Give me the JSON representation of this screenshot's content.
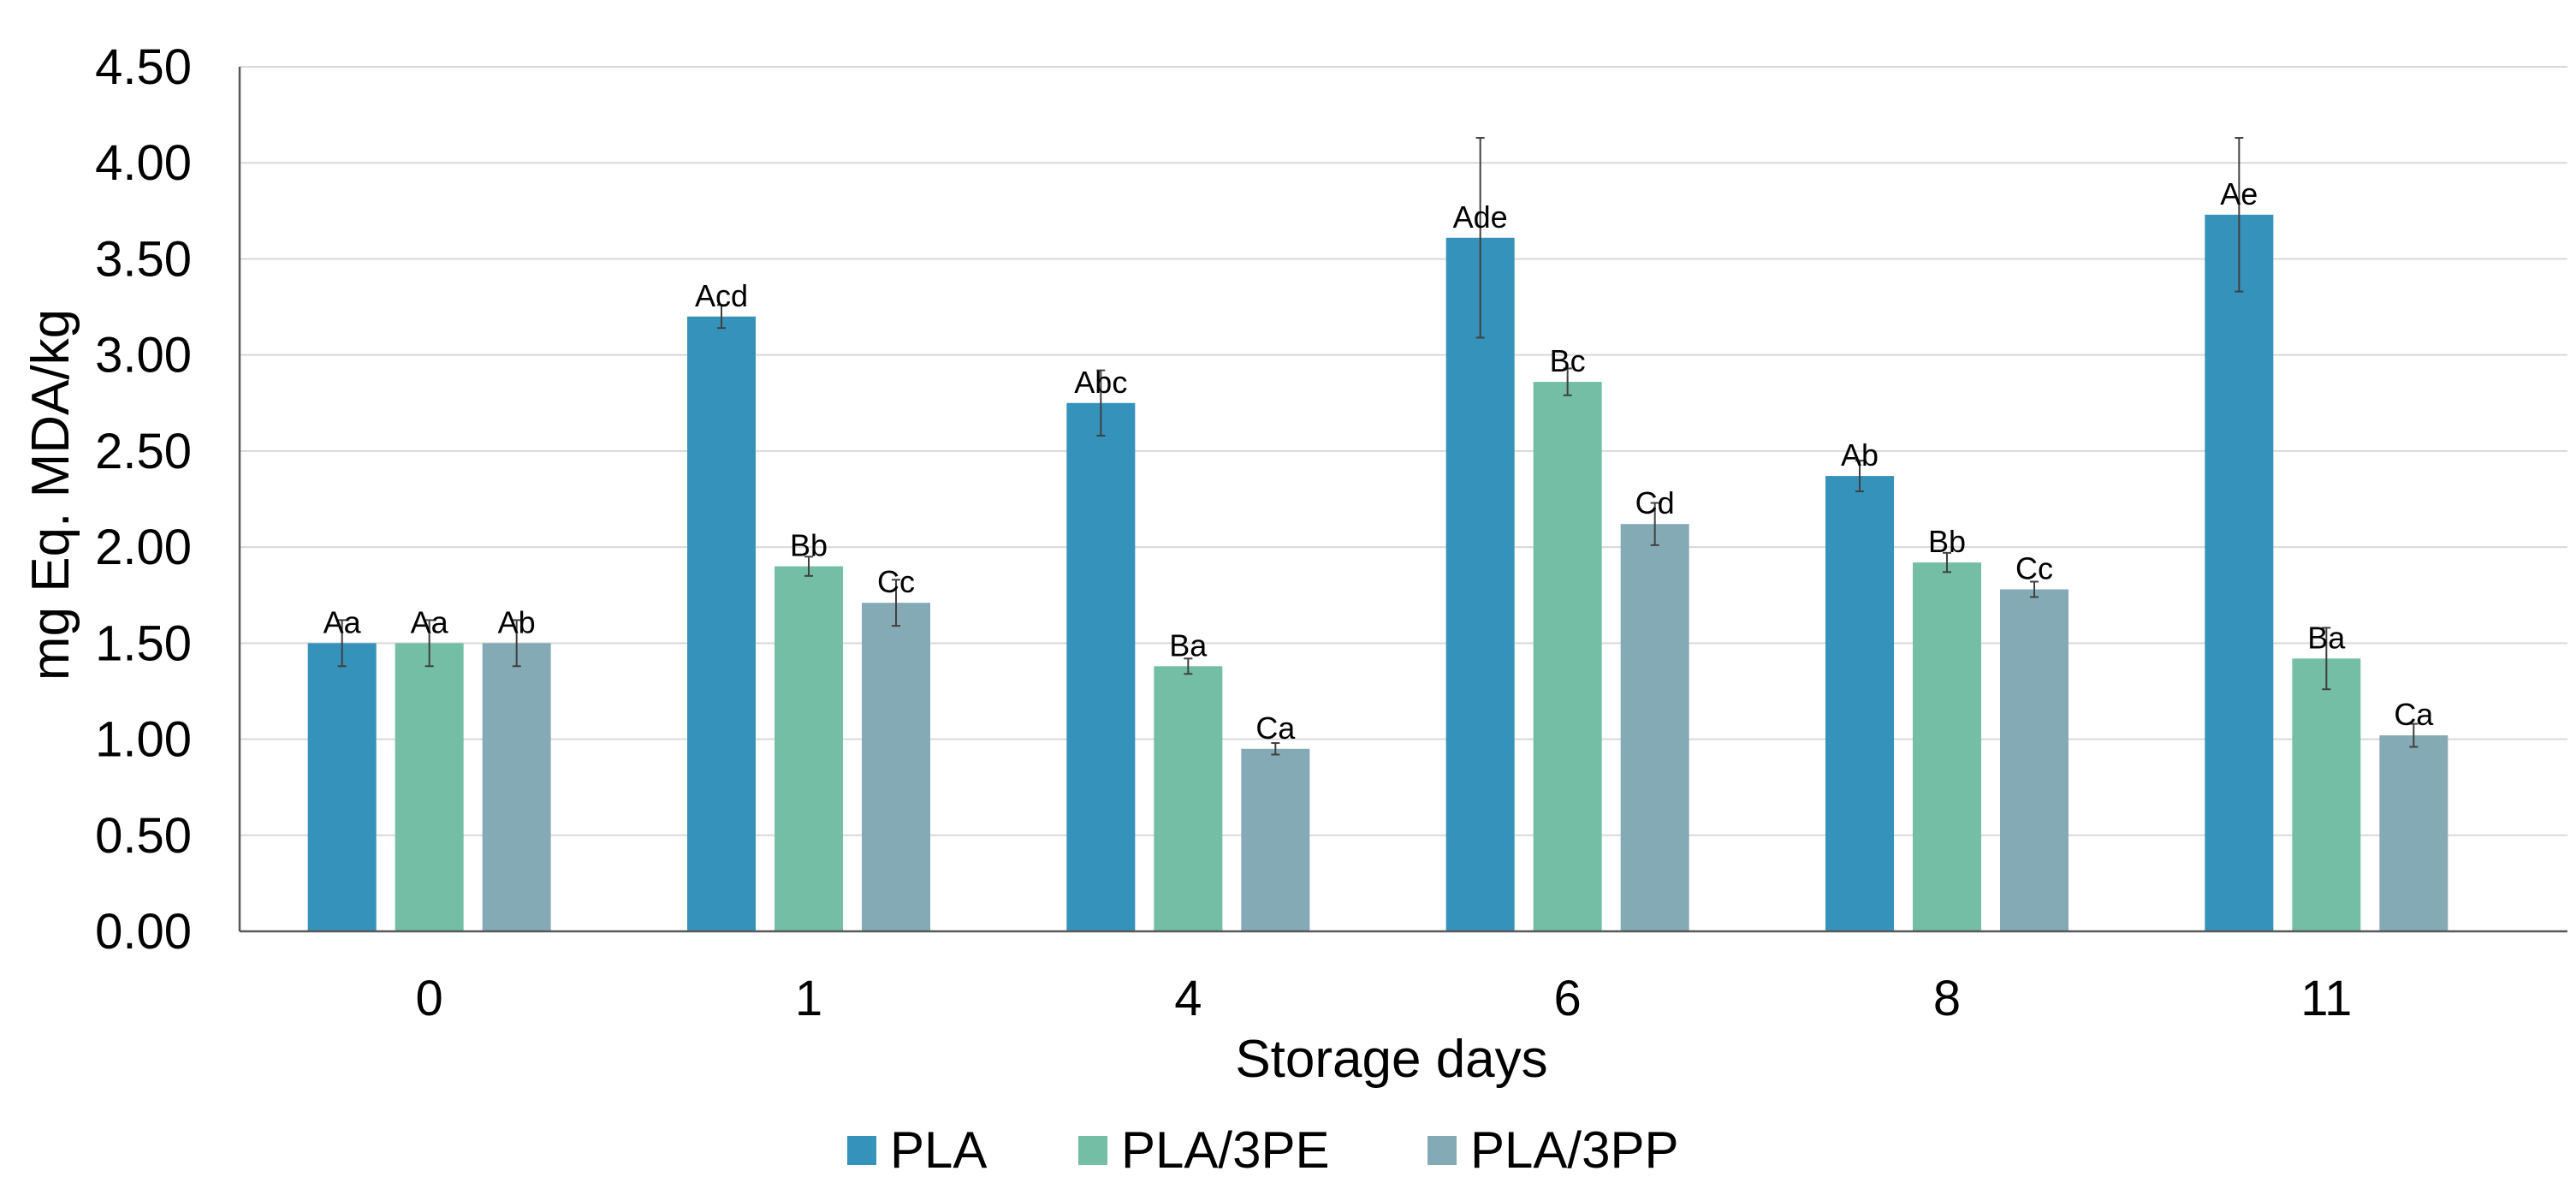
{
  "chart_data": {
    "type": "bar",
    "xlabel": "Storage days",
    "ylabel": "mg Eq. MDA/kg",
    "ylim": [
      0,
      4.5
    ],
    "ytick_step": 0.5,
    "ytick_decimals": 2,
    "grid": true,
    "legend_position": "bottom",
    "categories": [
      "0",
      "1",
      "4",
      "6",
      "8",
      "11"
    ],
    "series": [
      {
        "name": "PLA",
        "color": "#3592bb",
        "values": [
          1.5,
          3.2,
          2.75,
          3.61,
          2.37,
          3.73
        ],
        "errors": [
          0.12,
          0.06,
          0.17,
          0.52,
          0.08,
          0.4
        ],
        "labels": [
          "Aa",
          "Acd",
          "Abc",
          "Ade",
          "Ab",
          "Ae"
        ]
      },
      {
        "name": "PLA/3PE",
        "color": "#75bea6",
        "values": [
          1.5,
          1.9,
          1.38,
          2.86,
          1.92,
          1.42
        ],
        "errors": [
          0.12,
          0.05,
          0.04,
          0.07,
          0.05,
          0.16
        ],
        "labels": [
          "Aa",
          "Bb",
          "Ba",
          "Bc",
          "Bb",
          "Ba"
        ]
      },
      {
        "name": "PLA/3PP",
        "color": "#84abb5",
        "values": [
          1.5,
          1.71,
          0.95,
          2.12,
          1.78,
          1.02
        ],
        "errors": [
          0.12,
          0.12,
          0.03,
          0.11,
          0.04,
          0.06
        ],
        "labels": [
          "Ab",
          "Cc",
          "Ca",
          "Cd",
          "Cc",
          "Ca"
        ]
      }
    ]
  }
}
